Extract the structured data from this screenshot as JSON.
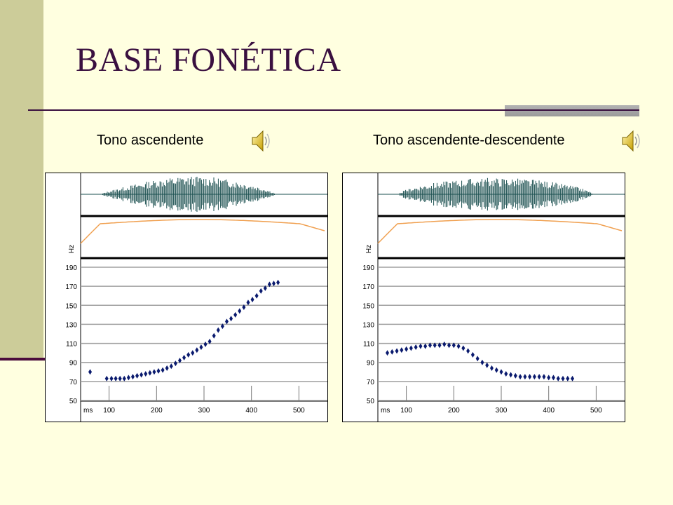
{
  "slide": {
    "title": "BASE FONÉTICA"
  },
  "colors": {
    "background": "#ffffe0",
    "accent_band": "#cccc99",
    "title": "#3a1040",
    "waveform": "#1a4f4f",
    "intensity": "#f0a050",
    "points": "#0a1a6e",
    "grid": "#a0a0a0"
  },
  "audio_icons": [
    "speaker-icon",
    "speaker-icon"
  ],
  "chart_data": [
    {
      "type": "scatter",
      "label": "Tono ascendente",
      "hz_label": "Hz",
      "ms_label": "ms",
      "y_ticks": [
        50,
        70,
        90,
        110,
        130,
        150,
        170,
        190
      ],
      "x_ticks": [
        100,
        200,
        300,
        400,
        500
      ],
      "xlim": [
        40,
        560
      ],
      "ylim": [
        50,
        190
      ],
      "grid": true,
      "points": [
        {
          "x": 60,
          "y": 80
        },
        {
          "x": 95,
          "y": 73
        },
        {
          "x": 105,
          "y": 73
        },
        {
          "x": 114,
          "y": 73
        },
        {
          "x": 123,
          "y": 73
        },
        {
          "x": 132,
          "y": 73
        },
        {
          "x": 141,
          "y": 74
        },
        {
          "x": 150,
          "y": 75
        },
        {
          "x": 159,
          "y": 76
        },
        {
          "x": 168,
          "y": 77
        },
        {
          "x": 177,
          "y": 78
        },
        {
          "x": 186,
          "y": 79
        },
        {
          "x": 195,
          "y": 80
        },
        {
          "x": 204,
          "y": 81
        },
        {
          "x": 213,
          "y": 82
        },
        {
          "x": 222,
          "y": 84
        },
        {
          "x": 231,
          "y": 86
        },
        {
          "x": 240,
          "y": 89
        },
        {
          "x": 249,
          "y": 92
        },
        {
          "x": 258,
          "y": 95
        },
        {
          "x": 267,
          "y": 98
        },
        {
          "x": 276,
          "y": 100
        },
        {
          "x": 285,
          "y": 103
        },
        {
          "x": 294,
          "y": 106
        },
        {
          "x": 303,
          "y": 109
        },
        {
          "x": 312,
          "y": 112
        },
        {
          "x": 321,
          "y": 118
        },
        {
          "x": 330,
          "y": 124
        },
        {
          "x": 339,
          "y": 128
        },
        {
          "x": 348,
          "y": 133
        },
        {
          "x": 357,
          "y": 136
        },
        {
          "x": 366,
          "y": 140
        },
        {
          "x": 375,
          "y": 144
        },
        {
          "x": 384,
          "y": 148
        },
        {
          "x": 393,
          "y": 153
        },
        {
          "x": 402,
          "y": 156
        },
        {
          "x": 411,
          "y": 160
        },
        {
          "x": 420,
          "y": 165
        },
        {
          "x": 429,
          "y": 168
        },
        {
          "x": 438,
          "y": 172
        },
        {
          "x": 447,
          "y": 173
        },
        {
          "x": 456,
          "y": 174
        }
      ]
    },
    {
      "type": "scatter",
      "label": "Tono ascendente-descendente",
      "hz_label": "Hz",
      "ms_label": "ms",
      "y_ticks": [
        50,
        70,
        90,
        110,
        130,
        150,
        170,
        190
      ],
      "x_ticks": [
        100,
        200,
        300,
        400,
        500
      ],
      "xlim": [
        40,
        560
      ],
      "ylim": [
        50,
        190
      ],
      "grid": true,
      "points": [
        {
          "x": 60,
          "y": 100
        },
        {
          "x": 70,
          "y": 101
        },
        {
          "x": 80,
          "y": 102
        },
        {
          "x": 90,
          "y": 103
        },
        {
          "x": 100,
          "y": 104
        },
        {
          "x": 110,
          "y": 105
        },
        {
          "x": 120,
          "y": 106
        },
        {
          "x": 130,
          "y": 107
        },
        {
          "x": 140,
          "y": 107
        },
        {
          "x": 150,
          "y": 108
        },
        {
          "x": 160,
          "y": 108
        },
        {
          "x": 170,
          "y": 108
        },
        {
          "x": 180,
          "y": 109
        },
        {
          "x": 190,
          "y": 108
        },
        {
          "x": 200,
          "y": 108
        },
        {
          "x": 210,
          "y": 107
        },
        {
          "x": 220,
          "y": 105
        },
        {
          "x": 230,
          "y": 102
        },
        {
          "x": 240,
          "y": 98
        },
        {
          "x": 250,
          "y": 94
        },
        {
          "x": 260,
          "y": 90
        },
        {
          "x": 270,
          "y": 87
        },
        {
          "x": 280,
          "y": 84
        },
        {
          "x": 290,
          "y": 82
        },
        {
          "x": 300,
          "y": 80
        },
        {
          "x": 310,
          "y": 78
        },
        {
          "x": 320,
          "y": 77
        },
        {
          "x": 330,
          "y": 76
        },
        {
          "x": 340,
          "y": 75
        },
        {
          "x": 350,
          "y": 75
        },
        {
          "x": 360,
          "y": 75
        },
        {
          "x": 370,
          "y": 75
        },
        {
          "x": 380,
          "y": 75
        },
        {
          "x": 390,
          "y": 75
        },
        {
          "x": 400,
          "y": 74
        },
        {
          "x": 410,
          "y": 74
        },
        {
          "x": 420,
          "y": 73
        },
        {
          "x": 430,
          "y": 73
        },
        {
          "x": 440,
          "y": 73
        },
        {
          "x": 450,
          "y": 73
        }
      ]
    }
  ]
}
